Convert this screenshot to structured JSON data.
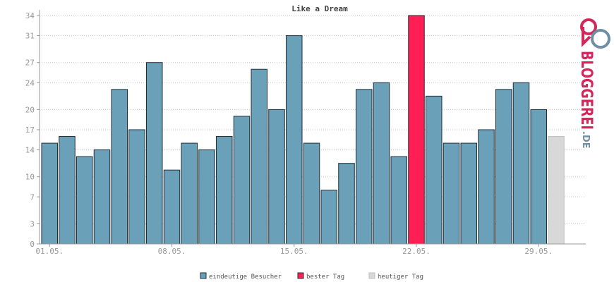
{
  "chart_data": {
    "type": "bar",
    "title": "Like a Dream",
    "yticks": [
      0,
      3,
      7,
      10,
      14,
      17,
      20,
      24,
      27,
      31,
      34
    ],
    "ylim": [
      0,
      34
    ],
    "grid": true,
    "xtick_labels": [
      {
        "index": 0,
        "label": "01.05."
      },
      {
        "index": 7,
        "label": "08.05."
      },
      {
        "index": 14,
        "label": "15.05."
      },
      {
        "index": 21,
        "label": "22.05."
      },
      {
        "index": 28,
        "label": "29.05."
      }
    ],
    "values": [
      15,
      16,
      13,
      14,
      23,
      17,
      27,
      11,
      15,
      14,
      16,
      19,
      26,
      20,
      31,
      15,
      8,
      12,
      23,
      24,
      13,
      34,
      22,
      15,
      15,
      17,
      23,
      24,
      20,
      16
    ],
    "bar_types": [
      "v",
      "v",
      "v",
      "v",
      "v",
      "v",
      "v",
      "v",
      "v",
      "v",
      "v",
      "v",
      "v",
      "v",
      "v",
      "v",
      "v",
      "v",
      "v",
      "v",
      "v",
      "best",
      "v",
      "v",
      "v",
      "v",
      "v",
      "v",
      "v",
      "today"
    ],
    "series": [
      {
        "key": "v",
        "name": "eindeutige Besucher",
        "color": "#6aa1b9"
      },
      {
        "key": "best",
        "name": "bester Tag",
        "color": "#ff1f55"
      },
      {
        "key": "today",
        "name": "heutiger Tag",
        "color": "#d8d8d8"
      }
    ],
    "legend_position": "bottom"
  },
  "logo": {
    "text": "BLOGGEREI",
    "suffix": ".DE",
    "color": "#d2275a",
    "suffix_color": "#6f8fa5"
  }
}
